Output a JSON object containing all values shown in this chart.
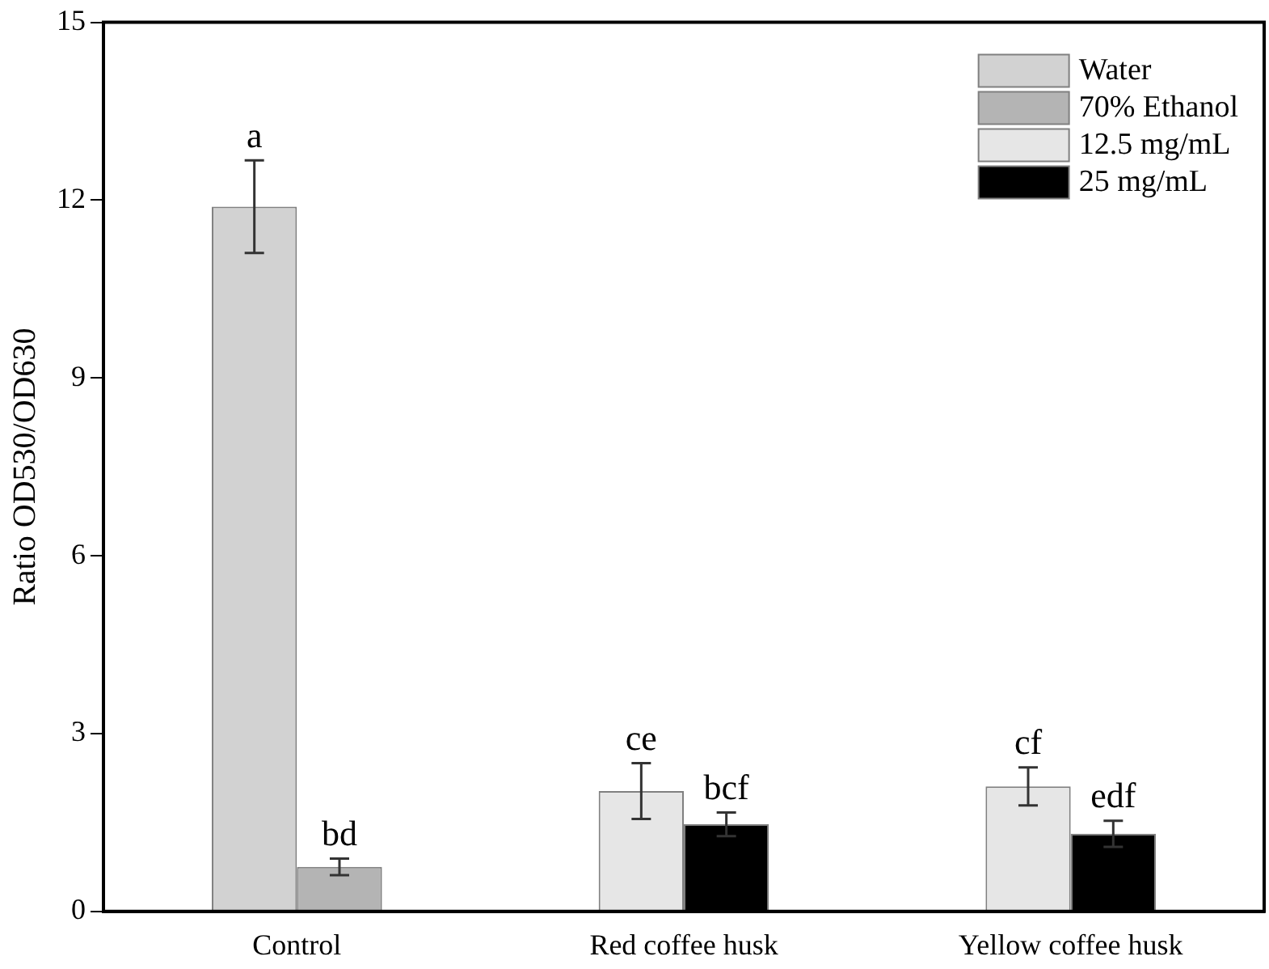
{
  "chart_data": {
    "type": "bar",
    "ylabel": "Ratio OD530/OD630",
    "categories": [
      "Control",
      "Red coffee husk",
      "Yellow coffee husk"
    ],
    "ylim": [
      0,
      15
    ],
    "yticks": [
      0,
      3,
      6,
      9,
      12,
      15
    ],
    "grid": false,
    "legend": "top right",
    "series": [
      {
        "name": "Water",
        "color": "#d2d2d2",
        "values": [
          11.89,
          null,
          null
        ],
        "errors": [
          0.78,
          null,
          null
        ],
        "value_labels": [
          "a",
          null,
          null
        ]
      },
      {
        "name": "70% Ethanol",
        "color": "#b4b4b4",
        "values": [
          0.75,
          null,
          null
        ],
        "errors": [
          0.14,
          null,
          null
        ],
        "value_labels": [
          "bd",
          null,
          null
        ]
      },
      {
        "name": "12.5 mg/mL",
        "color": "#e6e6e6",
        "values": [
          null,
          2.03,
          2.11
        ],
        "errors": [
          null,
          0.47,
          0.32
        ],
        "value_labels": [
          null,
          "ce",
          "cf"
        ]
      },
      {
        "name": "25 mg/mL",
        "color": "#000000",
        "values": [
          null,
          1.47,
          1.31
        ],
        "errors": [
          null,
          0.2,
          0.22
        ],
        "value_labels": [
          null,
          "bcf",
          "edf"
        ]
      }
    ]
  }
}
